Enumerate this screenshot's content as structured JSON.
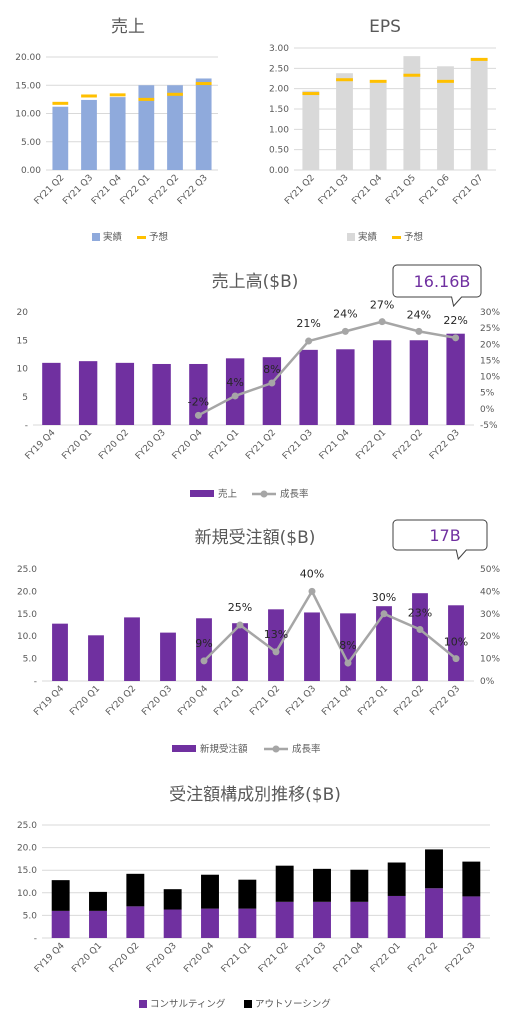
{
  "colors": {
    "actual_blue": "#8faadc",
    "forecast_gold": "#ffc000",
    "eps_gray": "#d9d9d9",
    "purple": "#7030a0",
    "growth_gray": "#a6a6a6",
    "black": "#000000",
    "axis": "#d9d9d9",
    "text": "#595959"
  },
  "chart_data": [
    {
      "id": "sales",
      "type": "bar",
      "title": "売上",
      "categories": [
        "FY21 Q2",
        "FY21 Q3",
        "FY21 Q4",
        "FY22 Q1",
        "FY22 Q2",
        "FY22 Q3"
      ],
      "series": [
        {
          "name": "実績",
          "values": [
            11.2,
            12.4,
            12.9,
            15.0,
            15.0,
            16.2
          ]
        },
        {
          "name": "予想",
          "values": [
            11.8,
            13.1,
            13.3,
            12.5,
            13.4,
            15.3
          ]
        }
      ],
      "yticks": [
        "0.00",
        "5.00",
        "10.00",
        "15.00",
        "20.00"
      ],
      "ylim": [
        0,
        20
      ],
      "grid": true,
      "legend": "bottom"
    },
    {
      "id": "eps",
      "type": "bar",
      "title": "EPS",
      "categories": [
        "FY21 Q2",
        "FY21 Q3",
        "FY21 Q4",
        "FY21 Q5",
        "FY21 Q6",
        "FY21 Q7"
      ],
      "series": [
        {
          "name": "実績",
          "values": [
            1.95,
            2.38,
            2.15,
            2.8,
            2.55,
            2.75
          ]
        },
        {
          "name": "予想",
          "values": [
            1.88,
            2.22,
            2.18,
            2.33,
            2.18,
            2.72
          ]
        }
      ],
      "yticks": [
        "0.00",
        "0.50",
        "1.00",
        "1.50",
        "2.00",
        "2.50",
        "3.00"
      ],
      "ylim": [
        0,
        3
      ],
      "grid": true,
      "legend": "bottom"
    },
    {
      "id": "revenue",
      "type": "bar",
      "title": "売上高($B)",
      "categories": [
        "FY19 Q4",
        "FY20 Q1",
        "FY20 Q2",
        "FY20 Q3",
        "FY20 Q4",
        "FY21 Q1",
        "FY21 Q2",
        "FY21 Q3",
        "FY21 Q4",
        "FY22 Q1",
        "FY22 Q2",
        "FY22 Q3"
      ],
      "series": [
        {
          "name": "売上",
          "values": [
            11.0,
            11.3,
            11.0,
            10.8,
            10.8,
            11.8,
            12.0,
            13.3,
            13.4,
            15.0,
            15.0,
            16.16
          ]
        },
        {
          "name": "成長率",
          "values": [
            null,
            null,
            null,
            null,
            -2,
            4,
            8,
            21,
            24,
            27,
            24,
            22
          ]
        }
      ],
      "growth_labels": [
        "",
        "",
        "",
        "",
        "-2%",
        "4%",
        "8%",
        "21%",
        "24%",
        "27%",
        "24%",
        "22%"
      ],
      "yticks_left": [
        "-",
        "5",
        "10",
        "15",
        "20"
      ],
      "ylim": [
        0,
        20
      ],
      "yticks_right": [
        "-5%",
        "0%",
        "5%",
        "10%",
        "15%",
        "20%",
        "25%",
        "30%"
      ],
      "ylim_right": [
        -5,
        30
      ],
      "callout": "16.16B",
      "legend": "bottom"
    },
    {
      "id": "orders",
      "type": "bar",
      "title": "新規受注額($B)",
      "categories": [
        "FY19 Q4",
        "FY20 Q1",
        "FY20 Q2",
        "FY20 Q3",
        "FY20 Q4",
        "FY21 Q1",
        "FY21 Q2",
        "FY21 Q3",
        "FY21 Q4",
        "FY22 Q1",
        "FY22 Q2",
        "FY22 Q3"
      ],
      "series": [
        {
          "name": "新規受注額",
          "values": [
            12.8,
            10.2,
            14.2,
            10.8,
            14.0,
            12.9,
            16.0,
            15.3,
            15.1,
            16.7,
            19.6,
            16.9
          ]
        },
        {
          "name": "成長率",
          "values": [
            null,
            null,
            null,
            null,
            9,
            25,
            13,
            40,
            8,
            30,
            23,
            10
          ]
        }
      ],
      "growth_labels": [
        "",
        "",
        "",
        "",
        "9%",
        "25%",
        "13%",
        "40%",
        "8%",
        "30%",
        "23%",
        "10%"
      ],
      "yticks_left": [
        "-",
        "5.0",
        "10.0",
        "15.0",
        "20.0",
        "25.0"
      ],
      "ylim": [
        0,
        25
      ],
      "yticks_right": [
        "0%",
        "10%",
        "20%",
        "30%",
        "40%",
        "50%"
      ],
      "ylim_right": [
        0,
        50
      ],
      "callout": "17B",
      "legend": "bottom"
    },
    {
      "id": "composition",
      "type": "bar",
      "title": "受注額構成別推移($B)",
      "categories": [
        "FY19 Q4",
        "FY20 Q1",
        "FY20 Q2",
        "FY20 Q3",
        "FY20 Q4",
        "FY21 Q1",
        "FY21 Q2",
        "FY21 Q3",
        "FY21 Q4",
        "FY22 Q1",
        "FY22 Q2",
        "FY22 Q3"
      ],
      "series": [
        {
          "name": "コンサルティング",
          "values": [
            6.0,
            6.0,
            7.0,
            6.3,
            6.5,
            6.5,
            8.0,
            8.0,
            8.0,
            9.3,
            11.0,
            9.2
          ]
        },
        {
          "name": "アウトソーシング",
          "values": [
            6.8,
            4.2,
            7.2,
            4.5,
            7.5,
            6.4,
            8.0,
            7.3,
            7.1,
            7.4,
            8.6,
            7.7
          ]
        }
      ],
      "yticks": [
        "-",
        "5.0",
        "10.0",
        "15.0",
        "20.0",
        "25.0"
      ],
      "ylim": [
        0,
        25
      ],
      "legend": "bottom"
    }
  ]
}
